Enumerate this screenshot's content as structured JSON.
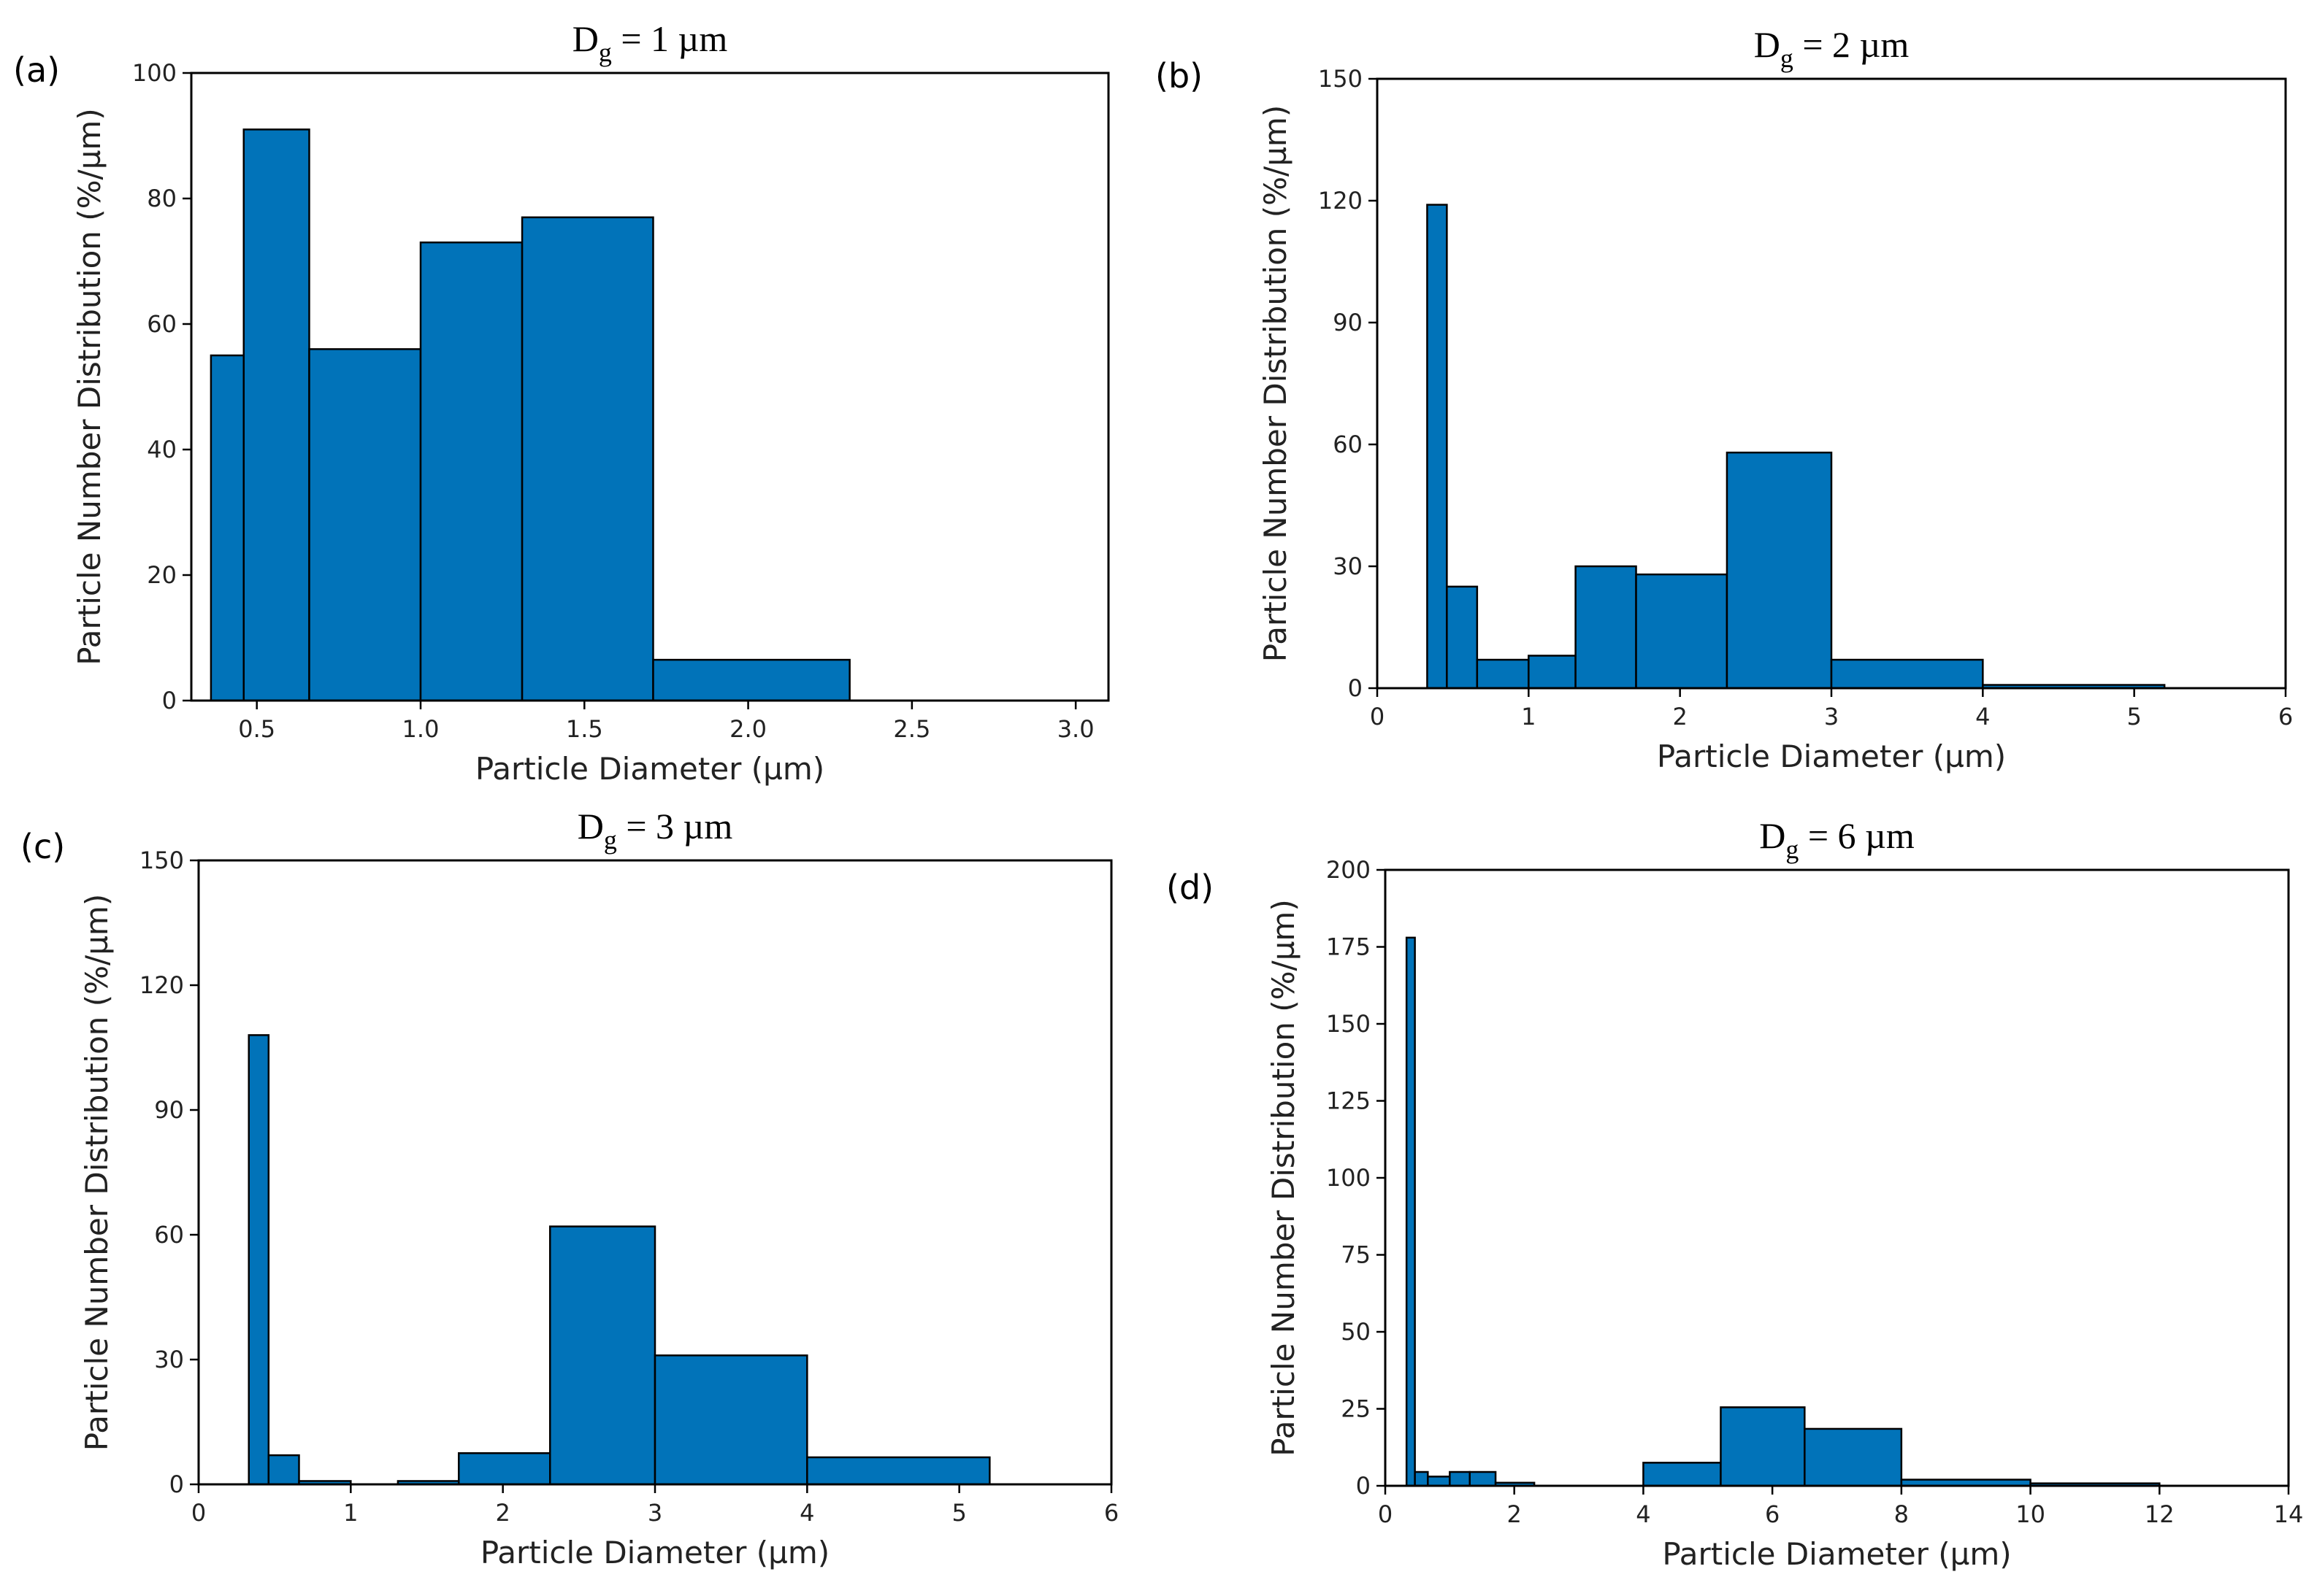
{
  "chart_data": [
    {
      "panel": "(a)",
      "type": "bar",
      "title_main": "D",
      "title_sub": "g",
      "title_rest": " = 1 µm",
      "xlabel": "Particle Diameter (µm)",
      "ylabel": "Particle Number Distribution (%/µm)",
      "xlim": [
        0.3,
        3.1
      ],
      "ylim": [
        0,
        100
      ],
      "xticks": [
        "0.5",
        "1.0",
        "1.5",
        "2.0",
        "2.5",
        "3.0"
      ],
      "xtick_values": [
        0.5,
        1.0,
        1.5,
        2.0,
        2.5,
        3.0
      ],
      "yticks": [
        "0",
        "20",
        "40",
        "60",
        "80",
        "100"
      ],
      "ytick_values": [
        0,
        20,
        40,
        60,
        80,
        100
      ],
      "bins": [
        {
          "x0": 0.36,
          "x1": 0.46,
          "y": 55
        },
        {
          "x0": 0.46,
          "x1": 0.66,
          "y": 91
        },
        {
          "x0": 0.66,
          "x1": 1.0,
          "y": 56
        },
        {
          "x0": 1.0,
          "x1": 1.31,
          "y": 73
        },
        {
          "x0": 1.31,
          "x1": 1.71,
          "y": 77
        },
        {
          "x0": 1.71,
          "x1": 2.31,
          "y": 6.5
        }
      ],
      "color": "#0173b9"
    },
    {
      "panel": "(b)",
      "type": "bar",
      "title_main": "D",
      "title_sub": "g",
      "title_rest": " = 2 µm",
      "xlabel": "Particle Diameter (µm)",
      "ylabel": "Particle Number Distribution (%/µm)",
      "xlim": [
        0,
        6
      ],
      "ylim": [
        0,
        150
      ],
      "xticks": [
        "0",
        "1",
        "2",
        "3",
        "4",
        "5",
        "6"
      ],
      "xtick_values": [
        0,
        1,
        2,
        3,
        4,
        5,
        6
      ],
      "yticks": [
        "0",
        "30",
        "60",
        "90",
        "120",
        "150"
      ],
      "ytick_values": [
        0,
        30,
        60,
        90,
        120,
        150
      ],
      "bins": [
        {
          "x0": 0.33,
          "x1": 0.46,
          "y": 119
        },
        {
          "x0": 0.46,
          "x1": 0.66,
          "y": 25
        },
        {
          "x0": 0.66,
          "x1": 1.0,
          "y": 7
        },
        {
          "x0": 1.0,
          "x1": 1.31,
          "y": 8
        },
        {
          "x0": 1.31,
          "x1": 1.71,
          "y": 30
        },
        {
          "x0": 1.71,
          "x1": 2.31,
          "y": 28
        },
        {
          "x0": 2.31,
          "x1": 3.0,
          "y": 58
        },
        {
          "x0": 3.0,
          "x1": 4.0,
          "y": 7
        },
        {
          "x0": 4.0,
          "x1": 5.2,
          "y": 0.8
        }
      ],
      "color": "#0173b9"
    },
    {
      "panel": "(c)",
      "type": "bar",
      "title_main": "D",
      "title_sub": "g",
      "title_rest": " = 3 µm",
      "xlabel": "Particle Diameter (µm)",
      "ylabel": "Particle Number Distribution (%/µm)",
      "xlim": [
        0,
        6
      ],
      "ylim": [
        0,
        150
      ],
      "xticks": [
        "0",
        "1",
        "2",
        "3",
        "4",
        "5",
        "6"
      ],
      "xtick_values": [
        0,
        1,
        2,
        3,
        4,
        5,
        6
      ],
      "yticks": [
        "0",
        "30",
        "60",
        "90",
        "120",
        "150"
      ],
      "ytick_values": [
        0,
        30,
        60,
        90,
        120,
        150
      ],
      "bins": [
        {
          "x0": 0.33,
          "x1": 0.46,
          "y": 108
        },
        {
          "x0": 0.46,
          "x1": 0.66,
          "y": 7
        },
        {
          "x0": 0.66,
          "x1": 1.0,
          "y": 0.8
        },
        {
          "x0": 1.31,
          "x1": 1.71,
          "y": 0.8
        },
        {
          "x0": 1.71,
          "x1": 2.31,
          "y": 7.5
        },
        {
          "x0": 2.31,
          "x1": 3.0,
          "y": 62
        },
        {
          "x0": 3.0,
          "x1": 4.0,
          "y": 31
        },
        {
          "x0": 4.0,
          "x1": 5.2,
          "y": 6.5
        }
      ],
      "color": "#0173b9"
    },
    {
      "panel": "(d)",
      "type": "bar",
      "title_main": "D",
      "title_sub": "g",
      "title_rest": " = 6 µm",
      "xlabel": "Particle Diameter (µm)",
      "ylabel": "Particle Number Distribution (%/µm)",
      "xlim": [
        0,
        14
      ],
      "ylim": [
        0,
        200
      ],
      "xticks": [
        "0",
        "2",
        "4",
        "6",
        "8",
        "10",
        "12",
        "14"
      ],
      "xtick_values": [
        0,
        2,
        4,
        6,
        8,
        10,
        12,
        14
      ],
      "yticks": [
        "0",
        "25",
        "50",
        "75",
        "100",
        "125",
        "150",
        "175",
        "200"
      ],
      "ytick_values": [
        0,
        25,
        50,
        75,
        100,
        125,
        150,
        175,
        200
      ],
      "bins": [
        {
          "x0": 0.33,
          "x1": 0.46,
          "y": 178
        },
        {
          "x0": 0.46,
          "x1": 0.66,
          "y": 4.5
        },
        {
          "x0": 0.66,
          "x1": 1.0,
          "y": 3
        },
        {
          "x0": 1.0,
          "x1": 1.31,
          "y": 4.5
        },
        {
          "x0": 1.31,
          "x1": 1.71,
          "y": 4.5
        },
        {
          "x0": 1.71,
          "x1": 2.31,
          "y": 1
        },
        {
          "x0": 4.0,
          "x1": 5.2,
          "y": 7.5
        },
        {
          "x0": 5.2,
          "x1": 6.5,
          "y": 25.5
        },
        {
          "x0": 6.5,
          "x1": 8.0,
          "y": 18.5
        },
        {
          "x0": 8.0,
          "x1": 10.0,
          "y": 2
        },
        {
          "x0": 10.0,
          "x1": 12.0,
          "y": 0.8
        }
      ],
      "color": "#0173b9"
    }
  ]
}
